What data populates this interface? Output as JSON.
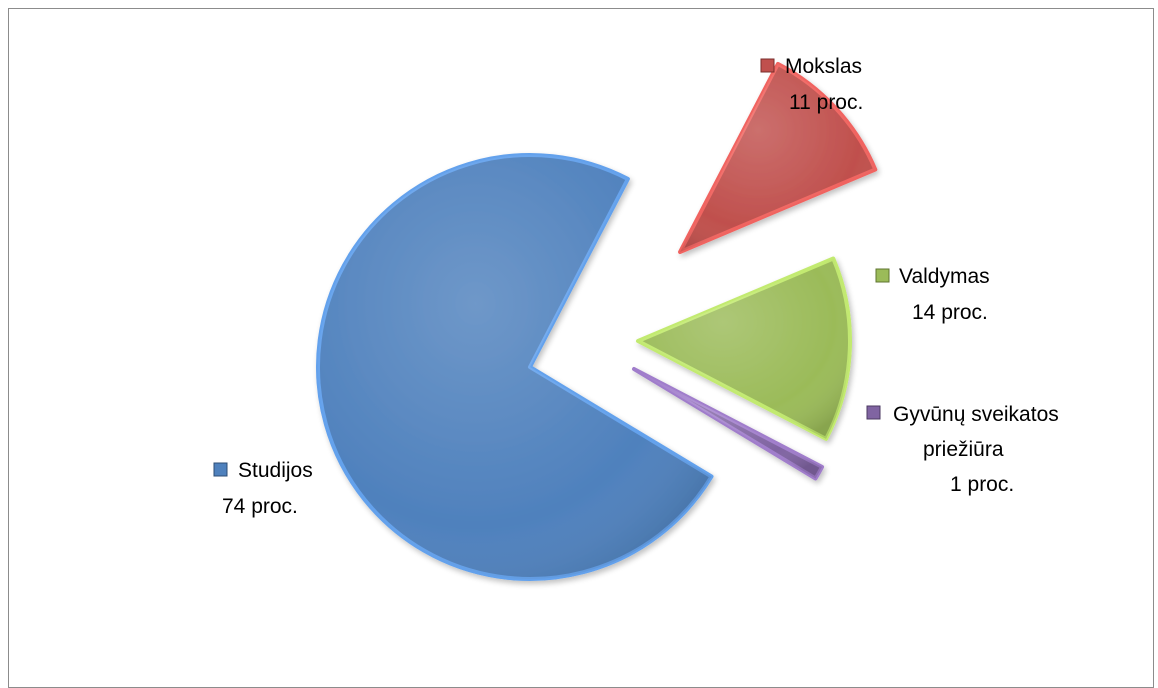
{
  "chart_data": {
    "type": "pie",
    "exploded": true,
    "slices": [
      {
        "name": "Studijos",
        "value": 74,
        "label": "74 proc.",
        "color": "#4f81bd"
      },
      {
        "name": "Mokslas",
        "value": 11,
        "label": "11 proc.",
        "color": "#c0504d"
      },
      {
        "name": "Valdymas",
        "value": 14,
        "label": "14 proc.",
        "color": "#9bbb59"
      },
      {
        "name": "Gyvūnų sveikatos priežiūra",
        "name_lines": [
          "Gyvūnų sveikatos",
          "priežiūra"
        ],
        "value": 1,
        "label": "1 proc.",
        "color": "#8064a2"
      }
    ]
  }
}
